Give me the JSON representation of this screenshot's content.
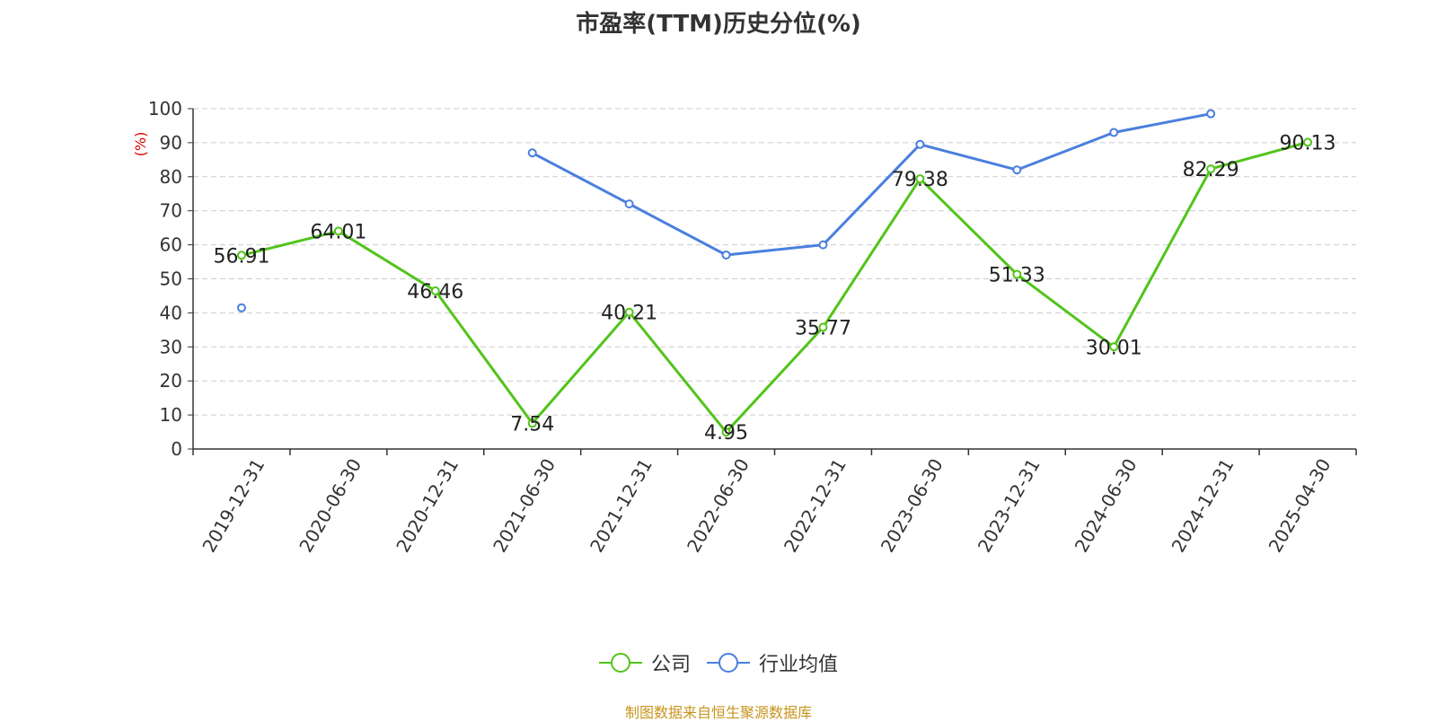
{
  "title": "市盈率(TTM)历史分位(%)",
  "source_note": "制图数据来自恒生聚源数据库",
  "colors": {
    "company": "#52c41a",
    "industry": "#4a7fde",
    "unit_label": "#e00000",
    "source": "#c7951c"
  },
  "chart_data": {
    "type": "line",
    "title": "市盈率(TTM)历史分位(%)",
    "ylabel": "(%)",
    "ylim": [
      0,
      100
    ],
    "yticks": [
      "0",
      "10",
      "20",
      "30",
      "40",
      "50",
      "60",
      "70",
      "80",
      "90",
      "100"
    ],
    "grid": true,
    "legend_position": "bottom",
    "categories": [
      "2019-12-31",
      "2020-06-30",
      "2020-12-31",
      "2021-06-30",
      "2021-12-31",
      "2022-06-30",
      "2022-12-31",
      "2023-06-30",
      "2023-12-31",
      "2024-06-30",
      "2024-12-31",
      "2025-04-30"
    ],
    "series": [
      {
        "name": "公司",
        "color": "#52c41a",
        "show_labels": true,
        "values": [
          56.91,
          64.01,
          46.46,
          7.54,
          40.21,
          4.95,
          35.77,
          79.38,
          51.33,
          30.01,
          82.29,
          90.13
        ],
        "labels": [
          "56.91",
          "64.01",
          "46.46",
          "7.54",
          "40.21",
          "4.95",
          "35.77",
          "79.38",
          "51.33",
          "30.01",
          "82.29",
          "90.13"
        ]
      },
      {
        "name": "行业均值",
        "color": "#4a7fde",
        "show_labels": false,
        "values": [
          41.5,
          null,
          null,
          87,
          72,
          57,
          60,
          89.5,
          82,
          93,
          98.5,
          null
        ]
      }
    ]
  }
}
